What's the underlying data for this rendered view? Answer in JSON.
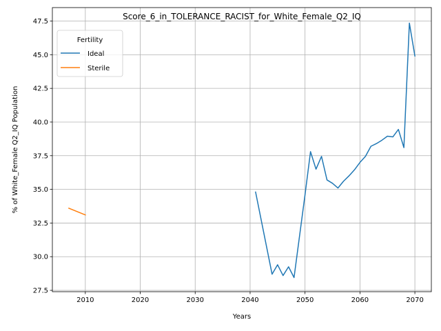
{
  "chart_data": {
    "type": "line",
    "title": "Score_6_in_TOLERANCE_RACIST_for_White_Female_Q2_IQ",
    "xlabel": "Years",
    "ylabel": "% of White_Female Q2_IQ Population",
    "xlim": [
      2004,
      2073
    ],
    "ylim": [
      27.4,
      48.5
    ],
    "xticks": [
      2010,
      2020,
      2030,
      2040,
      2050,
      2060,
      2070
    ],
    "yticks": [
      27.5,
      30.0,
      32.5,
      35.0,
      37.5,
      40.0,
      42.5,
      45.0,
      47.5
    ],
    "grid": true,
    "legend": {
      "title": "Fertility",
      "position": "top-left"
    },
    "series": [
      {
        "name": "Ideal",
        "color": "#1f77b4",
        "x": [
          2041,
          2044,
          2045,
          2046,
          2047,
          2048,
          2050,
          2051,
          2052,
          2053,
          2054,
          2055,
          2056,
          2057,
          2058,
          2059,
          2060,
          2061,
          2062,
          2063,
          2064,
          2065,
          2066,
          2067,
          2068,
          2069,
          2070
        ],
        "y": [
          34.8,
          28.7,
          29.4,
          28.6,
          29.25,
          28.45,
          34.6,
          37.8,
          36.5,
          37.45,
          35.7,
          35.45,
          35.1,
          35.6,
          36.0,
          36.45,
          37.0,
          37.45,
          38.2,
          38.4,
          38.65,
          38.95,
          38.9,
          39.45,
          38.1,
          47.35,
          44.9
        ]
      },
      {
        "name": "Sterile",
        "color": "#ff7f0e",
        "x": [
          2007,
          2010
        ],
        "y": [
          33.6,
          33.1
        ]
      }
    ]
  }
}
